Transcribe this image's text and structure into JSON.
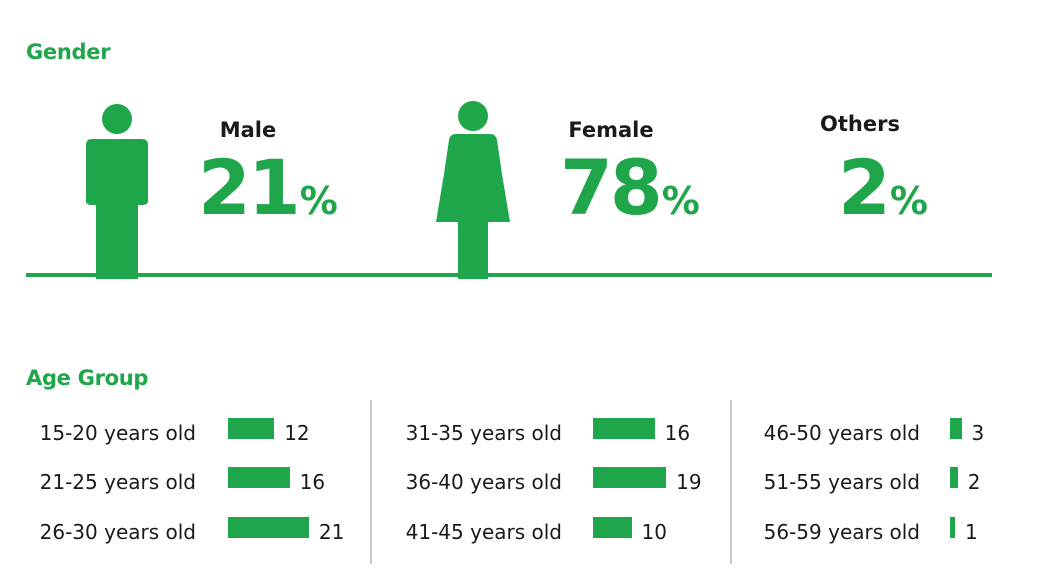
{
  "gender": {
    "title": "Gender",
    "items": [
      {
        "label": "Male",
        "value": "21",
        "unit": "%"
      },
      {
        "label": "Female",
        "value": "78",
        "unit": "%"
      },
      {
        "label": "Others",
        "value": "2",
        "unit": "%"
      }
    ]
  },
  "age": {
    "title": "Age Group"
  },
  "colors": {
    "accent": "#1fa64a",
    "divider": "#c8c8c8"
  },
  "icons": [
    "male-figure-icon",
    "female-figure-icon"
  ],
  "chart_data": [
    {
      "type": "pictograph",
      "title": "Gender",
      "categories": [
        "Male",
        "Female",
        "Others"
      ],
      "values": [
        21,
        78,
        2
      ],
      "unit": "%"
    },
    {
      "type": "bar",
      "orientation": "horizontal",
      "title": "Age Group",
      "categories": [
        "15-20 years old",
        "21-25 years old",
        "26-30 years old",
        "31-35 years old",
        "36-40 years old",
        "41-45 years old",
        "46-50 years old",
        "51-55 years old",
        "56-59 years old"
      ],
      "values": [
        12,
        16,
        21,
        16,
        19,
        10,
        3,
        2,
        1
      ],
      "grid": false,
      "data_labels": true
    }
  ]
}
